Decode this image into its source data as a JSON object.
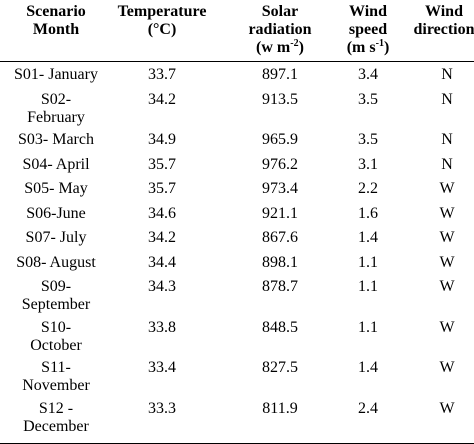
{
  "headers": {
    "scenario": [
      "Scenario",
      "Month"
    ],
    "temperature": [
      "Temperature",
      "(°C)"
    ],
    "solar": {
      "line1": "Solar",
      "line2": "radiation",
      "line3": "(w m",
      "exp": "-2",
      "close": ")"
    },
    "wind_speed": {
      "line1": "Wind",
      "line2": "speed",
      "line3": "(m s",
      "exp": "-1",
      "close": ")"
    },
    "wind_direction": [
      "Wind",
      "direction"
    ]
  },
  "rows": [
    {
      "scenario": [
        "S01- January"
      ],
      "temperature": "33.7",
      "solar": "897.1",
      "wind_speed": "3.4",
      "direction": "N"
    },
    {
      "scenario": [
        "S02-",
        "February"
      ],
      "temperature": "34.2",
      "solar": "913.5",
      "wind_speed": "3.5",
      "direction": "N"
    },
    {
      "scenario": [
        "S03- March"
      ],
      "temperature": "34.9",
      "solar": "965.9",
      "wind_speed": "3.5",
      "direction": "N"
    },
    {
      "scenario": [
        "S04- April"
      ],
      "temperature": "35.7",
      "solar": "976.2",
      "wind_speed": "3.1",
      "direction": "N"
    },
    {
      "scenario": [
        "S05- May"
      ],
      "temperature": "35.7",
      "solar": "973.4",
      "wind_speed": "2.2",
      "direction": "W"
    },
    {
      "scenario": [
        "S06-June"
      ],
      "temperature": "34.6",
      "solar": "921.1",
      "wind_speed": "1.6",
      "direction": "W"
    },
    {
      "scenario": [
        "S07- July"
      ],
      "temperature": "34.2",
      "solar": "867.6",
      "wind_speed": "1.4",
      "direction": "W"
    },
    {
      "scenario": [
        "S08- August"
      ],
      "temperature": "34.4",
      "solar": "898.1",
      "wind_speed": "1.1",
      "direction": "W"
    },
    {
      "scenario": [
        "S09-",
        "September"
      ],
      "temperature": "34.3",
      "solar": "878.7",
      "wind_speed": "1.1",
      "direction": "W"
    },
    {
      "scenario": [
        "S10-",
        "October"
      ],
      "temperature": "33.8",
      "solar": "848.5",
      "wind_speed": "1.1",
      "direction": "W"
    },
    {
      "scenario": [
        "S11-",
        "November"
      ],
      "temperature": "33.4",
      "solar": "827.5",
      "wind_speed": "1.4",
      "direction": "W"
    },
    {
      "scenario": [
        "S12 -",
        "December"
      ],
      "temperature": "33.3",
      "solar": "811.9",
      "wind_speed": "2.4",
      "direction": "W"
    }
  ]
}
